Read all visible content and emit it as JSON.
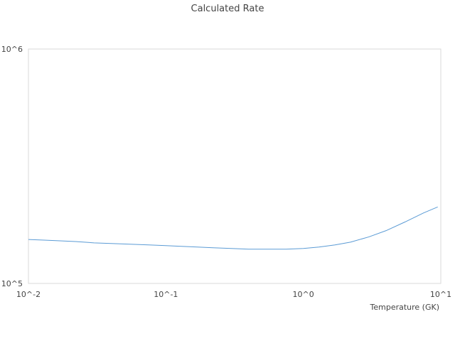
{
  "chart_data": {
    "type": "line",
    "title": "Calculated Rate",
    "xlabel": "Temperature (GK)",
    "ylabel": "",
    "x_scale": "log",
    "y_scale": "log",
    "xlim": [
      0.01,
      10
    ],
    "ylim": [
      100000,
      1000000
    ],
    "x_ticks": [
      {
        "value": 0.01,
        "label": "10^-2"
      },
      {
        "value": 0.1,
        "label": "10^-1"
      },
      {
        "value": 1,
        "label": "10^0"
      },
      {
        "value": 10,
        "label": "10^1"
      }
    ],
    "y_ticks": [
      {
        "value": 100000,
        "label": "10^5"
      },
      {
        "value": 1000000,
        "label": "10^6"
      }
    ],
    "grid": false,
    "legend": "none",
    "series": [
      {
        "color": "#5b9bd5",
        "points": [
          [
            0.01,
            154000
          ],
          [
            0.013,
            153000
          ],
          [
            0.017,
            152000
          ],
          [
            0.022,
            151000
          ],
          [
            0.03,
            149000
          ],
          [
            0.04,
            148000
          ],
          [
            0.055,
            147000
          ],
          [
            0.075,
            146000
          ],
          [
            0.1,
            145000
          ],
          [
            0.13,
            144000
          ],
          [
            0.17,
            143000
          ],
          [
            0.22,
            142000
          ],
          [
            0.3,
            141000
          ],
          [
            0.4,
            140000
          ],
          [
            0.55,
            140000
          ],
          [
            0.75,
            140000
          ],
          [
            1.0,
            141000
          ],
          [
            1.3,
            143000
          ],
          [
            1.7,
            146000
          ],
          [
            2.2,
            150000
          ],
          [
            3.0,
            158000
          ],
          [
            4.0,
            168000
          ],
          [
            5.5,
            183000
          ],
          [
            7.5,
            200000
          ],
          [
            9.5,
            212000
          ]
        ]
      }
    ]
  }
}
